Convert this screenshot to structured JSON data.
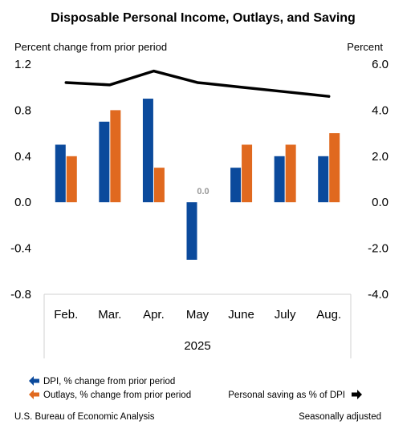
{
  "chart_data": {
    "type": "bar",
    "title": "Disposable Personal Income, Outlays, and Saving",
    "y_left_label": "Percent change from prior period",
    "y_right_label": "Percent",
    "categories": [
      "Feb.",
      "Mar.",
      "Apr.",
      "May",
      "June",
      "July",
      "Aug."
    ],
    "year_label": "2025",
    "y_left_ticks": [
      "1.2",
      "0.8",
      "0.4",
      "0.0",
      "-0.4",
      "-0.8"
    ],
    "y_right_ticks": [
      "6.0",
      "4.0",
      "2.0",
      "0.0",
      "-2.0",
      "-4.0"
    ],
    "ylim_left": [
      -0.8,
      1.2
    ],
    "ylim_right": [
      -4.0,
      6.0
    ],
    "series": [
      {
        "name": "DPI, % change from prior period",
        "type": "bar",
        "axis": "left",
        "color": "#0b4a9c",
        "values": [
          0.5,
          0.7,
          0.9,
          -0.5,
          0.3,
          0.4,
          0.4
        ]
      },
      {
        "name": "Outlays, % change from prior period",
        "type": "bar",
        "axis": "left",
        "color": "#e0691f",
        "values": [
          0.4,
          0.8,
          0.3,
          0.0,
          0.5,
          0.5,
          0.6
        ]
      },
      {
        "name": "Personal saving as % of DPI",
        "type": "line",
        "axis": "right",
        "color": "#000000",
        "values": [
          5.2,
          5.1,
          5.7,
          5.2,
          5.0,
          4.8,
          4.6
        ]
      }
    ],
    "data_labels": [
      {
        "series": 1,
        "index": 3,
        "text": "0.0"
      }
    ],
    "grid": false
  },
  "legend": {
    "dpi": "DPI, % change from prior period",
    "outlays": "Outlays, % change from prior period",
    "saving": "Personal saving as % of DPI"
  },
  "footer": {
    "source": "U.S. Bureau of Economic Analysis",
    "note": "Seasonally adjusted"
  }
}
